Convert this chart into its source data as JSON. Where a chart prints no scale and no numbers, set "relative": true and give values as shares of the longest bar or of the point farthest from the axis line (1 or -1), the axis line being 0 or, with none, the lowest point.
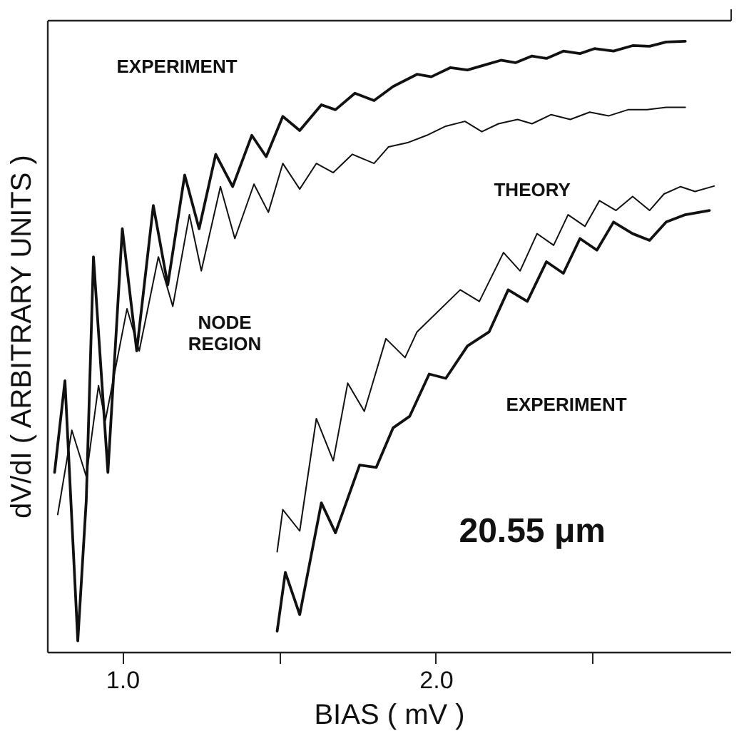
{
  "chart_data": {
    "type": "line",
    "relative": true,
    "xlabel": "BIAS ( mV )",
    "ylabel": "dV/dI ( ARBITRARY UNITS )",
    "xlim": [
      0.76,
      2.94
    ],
    "xticks": [
      {
        "value": 1.0,
        "label": "1.0"
      },
      {
        "value": 1.5,
        "label": null
      },
      {
        "value": 2.0,
        "label": "2.0"
      },
      {
        "value": 2.5,
        "label": null
      }
    ],
    "grid": false,
    "legend": false,
    "marker": "none",
    "line_style": "solid",
    "series": [
      {
        "color": "#111111",
        "x": [
          0.784,
          0.817,
          0.858,
          0.885,
          0.908,
          0.954,
          1.0,
          1.046,
          1.099,
          1.145,
          1.199,
          1.245,
          1.298,
          1.352,
          1.413,
          1.459,
          1.512,
          1.566,
          1.635,
          1.68,
          1.742,
          1.803,
          1.864,
          1.94,
          1.986,
          2.047,
          2.101,
          2.154,
          2.208,
          2.254,
          2.307,
          2.353,
          2.407,
          2.46,
          2.506,
          2.567,
          2.628,
          2.682,
          2.735,
          2.796
        ],
        "values": [
          0.294,
          0.444,
          0.018,
          0.248,
          0.647,
          0.294,
          0.693,
          0.493,
          0.731,
          0.601,
          0.781,
          0.693,
          0.815,
          0.762,
          0.846,
          0.811,
          0.877,
          0.854,
          0.896,
          0.888,
          0.915,
          0.903,
          0.926,
          0.946,
          0.942,
          0.957,
          0.953,
          0.961,
          0.969,
          0.965,
          0.976,
          0.972,
          0.984,
          0.98,
          0.988,
          0.984,
          0.993,
          0.992,
          0.999,
          1.0
        ]
      },
      {
        "color": "#111111",
        "x": [
          0.794,
          0.839,
          0.885,
          0.924,
          0.946,
          1.015,
          1.054,
          1.115,
          1.161,
          1.214,
          1.252,
          1.313,
          1.359,
          1.42,
          1.466,
          1.512,
          1.566,
          1.619,
          1.673,
          1.734,
          1.803,
          1.849,
          1.91,
          1.971,
          2.032,
          2.093,
          2.147,
          2.2,
          2.261,
          2.307,
          2.368,
          2.429,
          2.491,
          2.552,
          2.613,
          2.674,
          2.735,
          2.796
        ],
        "values": [
          0.225,
          0.363,
          0.287,
          0.436,
          0.379,
          0.562,
          0.493,
          0.647,
          0.566,
          0.716,
          0.624,
          0.762,
          0.677,
          0.766,
          0.72,
          0.8,
          0.758,
          0.8,
          0.785,
          0.815,
          0.8,
          0.827,
          0.834,
          0.846,
          0.861,
          0.869,
          0.852,
          0.865,
          0.872,
          0.865,
          0.88,
          0.872,
          0.884,
          0.878,
          0.888,
          0.888,
          0.892,
          0.892
        ]
      },
      {
        "color": "#111111",
        "x": [
          1.494,
          1.512,
          1.566,
          1.619,
          1.673,
          1.719,
          1.772,
          1.841,
          1.902,
          1.94,
          2.078,
          2.139,
          2.216,
          2.269,
          2.323,
          2.376,
          2.422,
          2.476,
          2.522,
          2.575,
          2.628,
          2.682,
          2.728,
          2.781,
          2.827,
          2.888
        ],
        "values": [
          0.164,
          0.233,
          0.198,
          0.382,
          0.313,
          0.44,
          0.394,
          0.513,
          0.482,
          0.524,
          0.593,
          0.574,
          0.654,
          0.624,
          0.685,
          0.666,
          0.716,
          0.697,
          0.739,
          0.723,
          0.746,
          0.723,
          0.75,
          0.762,
          0.754,
          0.763
        ]
      },
      {
        "color": "#111111",
        "x": [
          1.494,
          1.52,
          1.566,
          1.635,
          1.68,
          1.757,
          1.81,
          1.864,
          1.917,
          1.979,
          2.032,
          2.101,
          2.17,
          2.231,
          2.292,
          2.353,
          2.407,
          2.46,
          2.514,
          2.567,
          2.628,
          2.682,
          2.735,
          2.796,
          2.873
        ],
        "values": [
          0.034,
          0.13,
          0.061,
          0.244,
          0.195,
          0.306,
          0.302,
          0.367,
          0.386,
          0.455,
          0.448,
          0.501,
          0.524,
          0.593,
          0.574,
          0.639,
          0.62,
          0.677,
          0.658,
          0.704,
          0.685,
          0.674,
          0.704,
          0.716,
          0.723
        ]
      }
    ],
    "annotations": [
      "EXPERIMENT",
      "THEORY",
      "NODE\nREGION",
      "EXPERIMENT",
      "20.55 μm"
    ]
  }
}
